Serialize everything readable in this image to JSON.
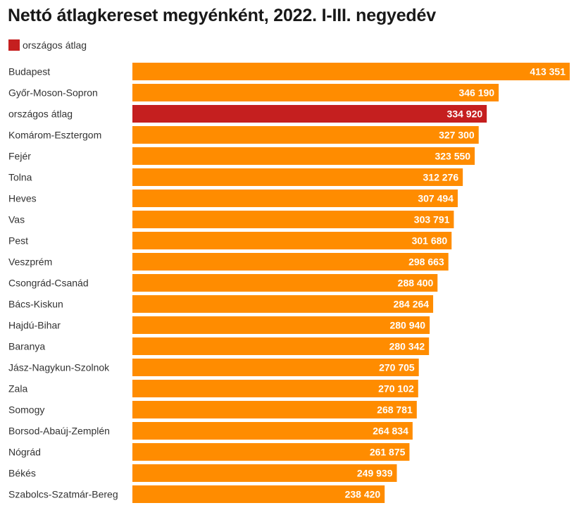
{
  "title": "Nettó átlagkereset megyénként, 2022. I-III. negyedév",
  "legend": {
    "label": "országos átlag",
    "color": "#c51f1f"
  },
  "colors": {
    "bar": "#ff8c00",
    "highlight": "#c51f1f"
  },
  "chart_data": {
    "type": "bar",
    "orientation": "horizontal",
    "categories": [
      "Budapest",
      "Győr-Moson-Sopron",
      "országos átlag",
      "Komárom-Esztergom",
      "Fejér",
      "Tolna",
      "Heves",
      "Vas",
      "Pest",
      "Veszprém",
      "Csongrád-Csanád",
      "Bács-Kiskun",
      "Hajdú-Bihar",
      "Baranya",
      "Jász-Nagykun-Szolnok",
      "Zala",
      "Somogy",
      "Borsod-Abaúj-Zemplén",
      "Nógrád",
      "Békés",
      "Szabolcs-Szatmár-Bereg"
    ],
    "values": [
      413351,
      346190,
      334920,
      327300,
      323550,
      312276,
      307494,
      303791,
      301680,
      298663,
      288400,
      284264,
      280940,
      280342,
      270705,
      270102,
      268781,
      264834,
      261875,
      249939,
      238420
    ],
    "value_labels": [
      "413 351",
      "346 190",
      "334 920",
      "327 300",
      "323 550",
      "312 276",
      "307 494",
      "303 791",
      "301 680",
      "298 663",
      "288 400",
      "284 264",
      "280 940",
      "280 342",
      "270 705",
      "270 102",
      "268 781",
      "264 834",
      "261 875",
      "249 939",
      "238 420"
    ],
    "highlight_category": "országos átlag",
    "xlim": [
      0,
      413351
    ],
    "grid": false
  }
}
